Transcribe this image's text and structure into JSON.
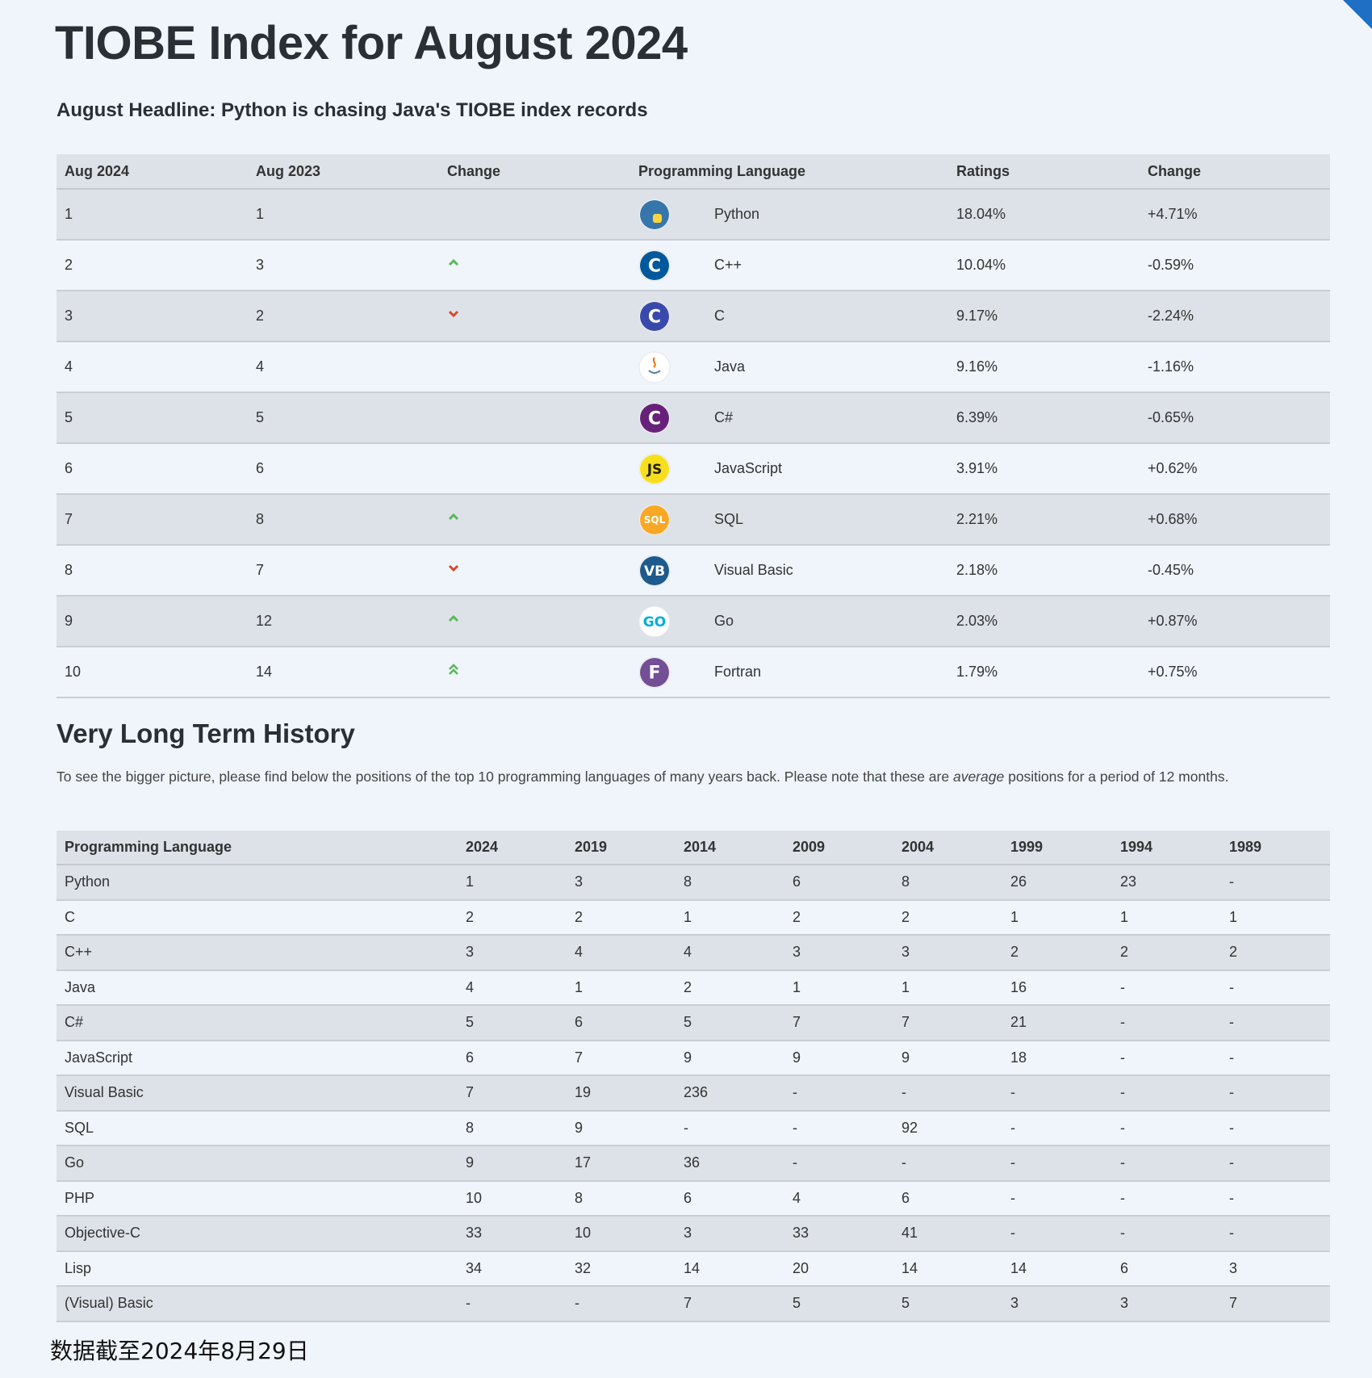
{
  "header": {
    "title": "TIOBE Index for August 2024",
    "headline": "August Headline: Python is chasing Java's TIOBE index records"
  },
  "table": {
    "headers": [
      "Aug 2024",
      "Aug 2023",
      "Change",
      "Programming Language",
      "Ratings",
      "Change"
    ],
    "rows": [
      {
        "rank": 1,
        "previous": 1,
        "trend": null,
        "logo": {
          "color": "#3776ab",
          "accent": "#ffd43b"
        },
        "language": "Python",
        "rating": "18.04%",
        "change": "+4.71%"
      },
      {
        "rank": 2,
        "previous": 3,
        "trend": "up",
        "logo": {
          "color": "#00599c",
          "text": "C"
        },
        "language": "C++",
        "rating": "10.04%",
        "change": "-0.59%"
      },
      {
        "rank": 3,
        "previous": 2,
        "trend": "down",
        "logo": {
          "color": "#3949ab",
          "text": "C"
        },
        "language": "C",
        "rating": "9.17%",
        "change": "-2.24%"
      },
      {
        "rank": 4,
        "previous": 4,
        "trend": null,
        "logo": {
          "color": "#ffffff",
          "accent": "#e76f00"
        },
        "language": "Java",
        "rating": "9.16%",
        "change": "-1.16%"
      },
      {
        "rank": 5,
        "previous": 5,
        "trend": null,
        "logo": {
          "color": "#68217a",
          "text": "C"
        },
        "language": "C#",
        "rating": "6.39%",
        "change": "-0.65%"
      },
      {
        "rank": 6,
        "previous": 6,
        "trend": null,
        "logo": {
          "color": "#f7df1e",
          "text": "JS",
          "ink": "#222"
        },
        "language": "JavaScript",
        "rating": "3.91%",
        "change": "+0.62%"
      },
      {
        "rank": 7,
        "previous": 8,
        "trend": "up",
        "logo": {
          "color": "#f9a825",
          "text": "SQL"
        },
        "language": "SQL",
        "rating": "2.21%",
        "change": "+0.68%"
      },
      {
        "rank": 8,
        "previous": 7,
        "trend": "down",
        "logo": {
          "color": "#1e5a8c",
          "text": "VB"
        },
        "language": "Visual Basic",
        "rating": "2.18%",
        "change": "-0.45%"
      },
      {
        "rank": 9,
        "previous": 12,
        "trend": "up",
        "logo": {
          "color": "#ffffff",
          "text": "GO",
          "ink": "#00add8"
        },
        "language": "Go",
        "rating": "2.03%",
        "change": "+0.87%"
      },
      {
        "rank": 10,
        "previous": 14,
        "trend": "up2",
        "logo": {
          "color": "#734f96",
          "text": "F"
        },
        "language": "Fortran",
        "rating": "1.79%",
        "change": "+0.75%"
      }
    ]
  },
  "history": {
    "title": "Very Long Term History",
    "intro": {
      "before": "To see the bigger picture, please find below the positions of the top 10 programming languages of many years back. Please note that these are ",
      "emphasis": "average",
      "after": " positions for a period of 12 months."
    },
    "headers": [
      "Programming Language",
      "2024",
      "2019",
      "2014",
      "2009",
      "2004",
      "1999",
      "1994",
      "1989"
    ],
    "rows": [
      [
        "Python",
        1,
        3,
        8,
        6,
        8,
        26,
        23,
        "-"
      ],
      [
        "C",
        2,
        2,
        1,
        2,
        2,
        1,
        1,
        1
      ],
      [
        "C++",
        3,
        4,
        4,
        3,
        3,
        2,
        2,
        2
      ],
      [
        "Java",
        4,
        1,
        2,
        1,
        1,
        16,
        "-",
        "-"
      ],
      [
        "C#",
        5,
        6,
        5,
        7,
        7,
        21,
        "-",
        "-"
      ],
      [
        "JavaScript",
        6,
        7,
        9,
        9,
        9,
        18,
        "-",
        "-"
      ],
      [
        "Visual Basic",
        7,
        19,
        236,
        "-",
        "-",
        "-",
        "-",
        "-"
      ],
      [
        "SQL",
        8,
        9,
        "-",
        "-",
        92,
        "-",
        "-",
        "-"
      ],
      [
        "Go",
        9,
        17,
        36,
        "-",
        "-",
        "-",
        "-",
        "-"
      ],
      [
        "PHP",
        10,
        8,
        6,
        4,
        6,
        "-",
        "-",
        "-"
      ],
      [
        "Objective-C",
        33,
        10,
        3,
        33,
        41,
        "-",
        "-",
        "-"
      ],
      [
        "Lisp",
        34,
        32,
        14,
        20,
        14,
        14,
        6,
        3
      ],
      [
        "(Visual) Basic",
        "-",
        "-",
        7,
        5,
        5,
        3,
        3,
        7
      ]
    ]
  },
  "footer": {
    "note": "数据截至2024年8月29日"
  }
}
